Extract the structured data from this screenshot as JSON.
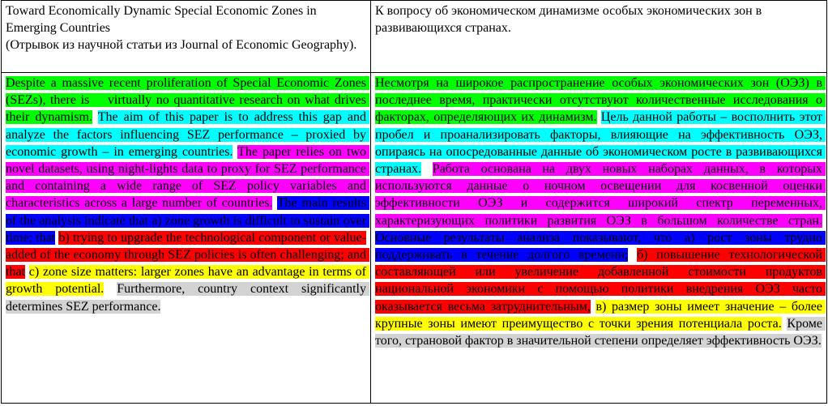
{
  "header": {
    "left": {
      "title": "Toward Economically Dynamic Special Economic Zones in Emerging Countries",
      "note": "(Отрывок из научной статьи из Journal of Economic Geography)."
    },
    "right": {
      "title": "К вопросу об экономическом динамизме особых экономических зон в развивающихся странах."
    }
  },
  "body": {
    "left": [
      {
        "color": "#00ff00",
        "text": "Despite a massive recent proliferation of Special Economic Zones (SEZs), there is    virtually no quantitative research on what drives their dynamism."
      },
      {
        "color": "#00ffff",
        "text": "The aim of this paper is to address this gap and analyze the factors influencing SEZ performance – proxied by economic growth – in emerging countries."
      },
      {
        "color": "#ff00ff",
        "text": "The paper relies on two novel datasets, using night-lights data to proxy for SEZ performance and containing a wide range of SEZ policy variables and characteristics across a large number of countries."
      },
      {
        "color": "#0000ff",
        "text": "The main results of the analysis indicate that a) zone growth is difficult to sustain over time; that"
      },
      {
        "color": "#ff0000",
        "text": "b) trying to upgrade the technological component or value-added of the economy through SEZ policies is often challenging; and that"
      },
      {
        "color": "#ffff00",
        "text": "c) zone size matters: larger zones have an advantage in terms of growth potential."
      },
      {
        "color": "#d3d3d3",
        "text": "Furthermore, country context significantly determines SEZ performance."
      }
    ],
    "right": [
      {
        "color": "#00ff00",
        "text": "Несмотря на широкое распространение особых экономических зон (ОЭЗ) в последнее время, практически отсутствуют количественные исследования о факторах, определяющих их динамизм."
      },
      {
        "color": "#00ffff",
        "text": "Цель данной работы – восполнить этот пробел и проанализировать факторы, влияющие на эффективность ОЭЗ, опираясь на опосредованные данные об экономическом росте в развивающихся странах."
      },
      {
        "color": "#ff00ff",
        "text": "Работа основана на двух новых наборах данных, в которых используются данные о ночном освещении для косвенной оценки эффективности ОЭЗ и содержится широкий спектр переменных, характеризующих политики развития ОЭЗ в большом количестве стран."
      },
      {
        "color": "#0000ff",
        "text": "Основные результаты анализа показывают, что а) рост зоны трудно поддерживать в течение долгого времени;"
      },
      {
        "color": "#ff0000",
        "text": "б) повышение технологической составляющей или увеличение добавленной стоимости продуктов национальной экономики с помощью политики внедрения ОЭЗ часто оказывается весьма затруднительным,"
      },
      {
        "color": "#ffff00",
        "text": "в) размер зоны имеет значение – более крупные зоны имеют преимущество с точки зрения потенциала роста."
      },
      {
        "color": "#d3d3d3",
        "text": "Кроме того, страновой фактор в значительной степени определяет эффективность ОЭЗ."
      }
    ]
  }
}
